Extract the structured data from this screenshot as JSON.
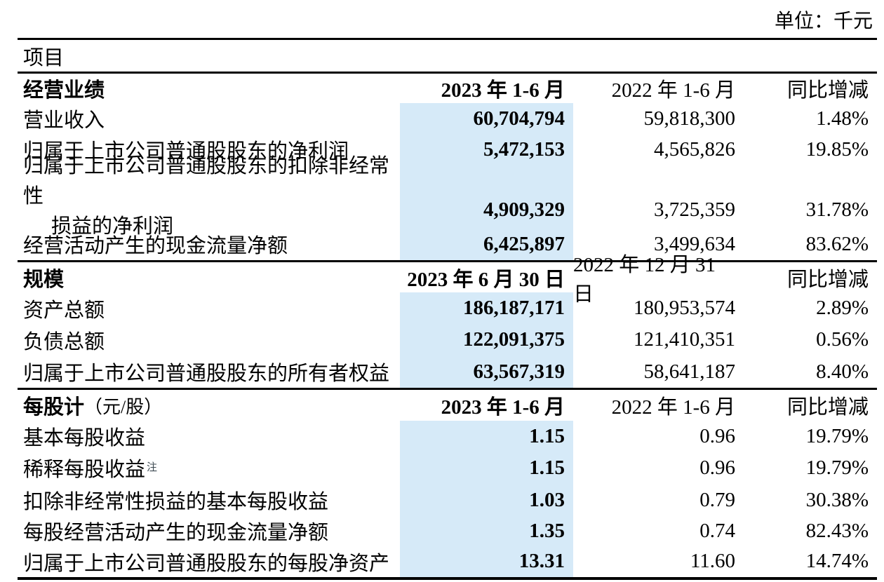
{
  "unit_label": "单位：千元",
  "item_header": "项目",
  "footnote_marker": "注",
  "highlight_color": "#d6eaf8",
  "rule_color": "#000000",
  "sections": [
    {
      "title": "经营业绩",
      "col_2023": "2023 年 1-6 月",
      "col_2022": "2022 年 1-6 月",
      "col_change": "同比增减",
      "rows": [
        {
          "label": "营业收入",
          "v2023": "60,704,794",
          "v2022": "59,818,300",
          "change": "1.48%"
        },
        {
          "label": "归属于上市公司普通股股东的净利润",
          "v2023": "5,472,153",
          "v2022": "4,565,826",
          "change": "19.85%"
        },
        {
          "label_line1": "归属于上市公司普通股股东的扣除非经常性",
          "label_line2": "损益的净利润",
          "v2023": "4,909,329",
          "v2022": "3,725,359",
          "change": "31.78%"
        },
        {
          "label": "经营活动产生的现金流量净额",
          "v2023": "6,425,897",
          "v2022": "3,499,634",
          "change": "83.62%"
        }
      ]
    },
    {
      "title": "规模",
      "col_2023": "2023 年 6 月 30 日",
      "col_2022": "2022 年 12 月 31 日",
      "col_change": "同比增减",
      "rows": [
        {
          "label": "资产总额",
          "v2023": "186,187,171",
          "v2022": "180,953,574",
          "change": "2.89%"
        },
        {
          "label": "负债总额",
          "v2023": "122,091,375",
          "v2022": "121,410,351",
          "change": "0.56%"
        },
        {
          "label": "归属于上市公司普通股股东的所有者权益",
          "v2023": "63,567,319",
          "v2022": "58,641,187",
          "change": "8.40%"
        }
      ]
    },
    {
      "title": "每股计",
      "title_suffix": "（元/股）",
      "col_2023": "2023 年 1-6 月",
      "col_2022": "2022 年 1-6 月",
      "col_change": "同比增减",
      "rows": [
        {
          "label": "基本每股收益",
          "v2023": "1.15",
          "v2022": "0.96",
          "change": "19.79%"
        },
        {
          "label": "稀释每股收益",
          "has_footnote": true,
          "v2023": "1.15",
          "v2022": "0.96",
          "change": "19.79%"
        },
        {
          "label": "扣除非经常性损益的基本每股收益",
          "v2023": "1.03",
          "v2022": "0.79",
          "change": "30.38%"
        },
        {
          "label": "每股经营活动产生的现金流量净额",
          "v2023": "1.35",
          "v2022": "0.74",
          "change": "82.43%"
        },
        {
          "label": "归属于上市公司普通股股东的每股净资产",
          "v2023": "13.31",
          "v2022": "11.60",
          "change": "14.74%"
        }
      ]
    }
  ]
}
